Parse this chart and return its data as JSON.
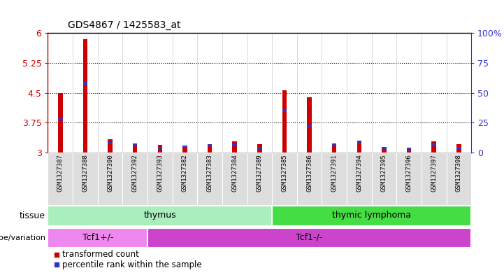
{
  "title": "GDS4867 / 1425583_at",
  "samples": [
    "GSM1327387",
    "GSM1327388",
    "GSM1327390",
    "GSM1327392",
    "GSM1327393",
    "GSM1327382",
    "GSM1327383",
    "GSM1327384",
    "GSM1327389",
    "GSM1327385",
    "GSM1327386",
    "GSM1327391",
    "GSM1327394",
    "GSM1327395",
    "GSM1327396",
    "GSM1327397",
    "GSM1327398"
  ],
  "transformed_count": [
    4.5,
    5.85,
    3.33,
    3.22,
    3.19,
    3.17,
    3.22,
    3.28,
    3.21,
    4.57,
    4.38,
    3.22,
    3.3,
    3.13,
    3.12,
    3.29,
    3.21
  ],
  "percentile_rank": [
    28,
    58,
    8,
    7,
    4,
    5,
    6,
    7,
    4,
    35,
    22,
    7,
    8,
    4,
    3,
    7,
    4
  ],
  "ylim_left": [
    3.0,
    6.0
  ],
  "yticks_left": [
    3.0,
    3.75,
    4.5,
    5.25,
    6.0
  ],
  "ylim_right": [
    0,
    100
  ],
  "yticks_right": [
    0,
    25,
    50,
    75,
    100
  ],
  "bar_color": "#cc0000",
  "blue_color": "#3333cc",
  "tissue_groups": [
    {
      "label": "thymus",
      "start": 0,
      "end": 8,
      "color": "#aaeebb"
    },
    {
      "label": "thymic lymphoma",
      "start": 9,
      "end": 16,
      "color": "#44dd44"
    }
  ],
  "genotype_groups": [
    {
      "label": "Tcf1+/-",
      "start": 0,
      "end": 3,
      "color": "#ee88ee"
    },
    {
      "label": "Tcf1-/-",
      "start": 4,
      "end": 16,
      "color": "#cc44cc"
    }
  ],
  "legend_items": [
    {
      "label": "transformed count",
      "color": "#cc0000"
    },
    {
      "label": "percentile rank within the sample",
      "color": "#3333cc"
    }
  ],
  "axis_left_color": "#cc0000",
  "axis_right_color": "#3333cc",
  "bar_width": 0.18,
  "xticklabel_bg": "#dddddd",
  "xticklabel_fontsize": 6.5
}
